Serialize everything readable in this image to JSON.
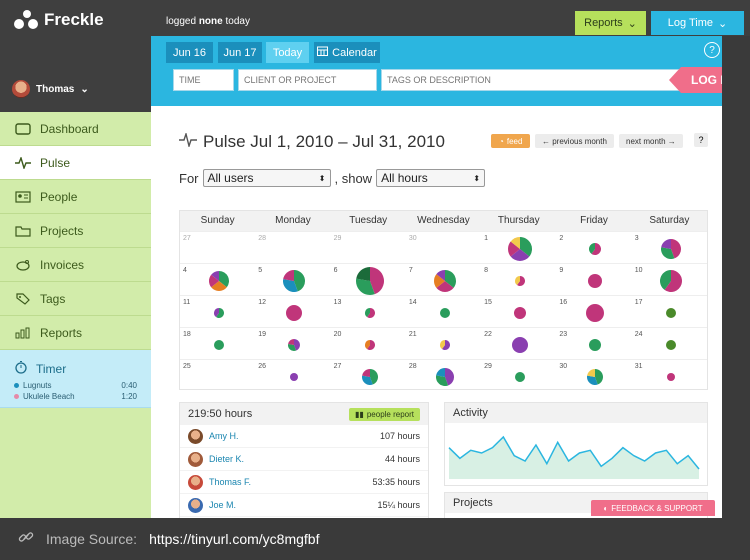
{
  "app": {
    "name": "Freckle"
  },
  "topbar": {
    "logged_prefix": "logged",
    "logged_bold": "none",
    "logged_suffix": "today",
    "reports_label": "Reports",
    "logtime_label": "Log Time"
  },
  "user": {
    "name": "Thomas"
  },
  "nav": [
    {
      "label": "Dashboard",
      "icon": "dashboard-icon"
    },
    {
      "label": "Pulse",
      "icon": "pulse-icon",
      "active": true
    },
    {
      "label": "People",
      "icon": "people-icon"
    },
    {
      "label": "Projects",
      "icon": "projects-icon"
    },
    {
      "label": "Invoices",
      "icon": "invoices-icon"
    },
    {
      "label": "Tags",
      "icon": "tags-icon"
    },
    {
      "label": "Reports",
      "icon": "reports-icon"
    }
  ],
  "timer": {
    "label": "Timer",
    "entries": [
      {
        "name": "Lugnuts",
        "time": "0:40",
        "color": "#1b8fbc"
      },
      {
        "name": "Ukulele Beach",
        "time": "1:20",
        "color": "#e58aa8"
      }
    ]
  },
  "datebar": {
    "tabs": [
      "Jun 16",
      "Jun 17",
      "Today"
    ],
    "calendar_label": "Calendar",
    "help": "?"
  },
  "entry": {
    "time_placeholder": "TIME",
    "client_placeholder": "CLIENT OR PROJECT",
    "tags_placeholder": "TAGS OR DESCRIPTION",
    "logit_label": "LOG IT"
  },
  "pulse": {
    "title": "Pulse Jul 1, 2010 – Jul 31, 2010",
    "feed_label": "feed",
    "prev_label": "previous month",
    "next_label": "next month",
    "help": "?"
  },
  "filter": {
    "for_label": "For",
    "users_value": "All users",
    "show_label": ", show",
    "hours_value": "All hours"
  },
  "calendar": {
    "weekdays": [
      "Sunday",
      "Monday",
      "Tuesday",
      "Wednesday",
      "Thursday",
      "Friday",
      "Saturday"
    ],
    "weeks": [
      [
        {
          "d": "27",
          "other": true
        },
        {
          "d": "28",
          "other": true
        },
        {
          "d": "29",
          "other": true
        },
        {
          "d": "30",
          "other": true
        },
        {
          "d": "1",
          "size": 12,
          "colors": [
            "#2a9d5c",
            "#8a3fb0",
            "#c0357a",
            "#f2c94c"
          ]
        },
        {
          "d": "2",
          "size": 6,
          "colors": [
            "#c0357a",
            "#2a9d5c"
          ]
        },
        {
          "d": "3",
          "size": 10,
          "colors": [
            "#c0357a",
            "#2a9d5c",
            "#8a3fb0"
          ]
        }
      ],
      [
        {
          "d": "4",
          "size": 10,
          "colors": [
            "#2a9d5c",
            "#e67e22",
            "#c0357a",
            "#8a3fb0"
          ]
        },
        {
          "d": "5",
          "size": 11,
          "colors": [
            "#2a9d5c",
            "#1b8fbc",
            "#c0357a"
          ]
        },
        {
          "d": "6",
          "size": 14,
          "colors": [
            "#c0357a",
            "#2a9d5c",
            "#1b6b3a"
          ]
        },
        {
          "d": "7",
          "size": 11,
          "colors": [
            "#2a9d5c",
            "#c0357a",
            "#e67e22",
            "#8a3fb0"
          ]
        },
        {
          "d": "8",
          "size": 5,
          "colors": [
            "#c0357a",
            "#f2c94c"
          ]
        },
        {
          "d": "9",
          "size": 7,
          "colors": [
            "#c0357a"
          ]
        },
        {
          "d": "10",
          "size": 11,
          "colors": [
            "#c0357a",
            "#2a9d5c"
          ]
        }
      ],
      [
        {
          "d": "11",
          "size": 5,
          "colors": [
            "#2a9d5c",
            "#8a3fb0"
          ]
        },
        {
          "d": "12",
          "size": 8,
          "colors": [
            "#c0357a"
          ]
        },
        {
          "d": "13",
          "size": 5,
          "colors": [
            "#c0357a",
            "#2a9d5c"
          ]
        },
        {
          "d": "14",
          "size": 5,
          "colors": [
            "#2a9d5c"
          ]
        },
        {
          "d": "15",
          "size": 6,
          "colors": [
            "#c0357a"
          ]
        },
        {
          "d": "16",
          "size": 9,
          "colors": [
            "#c0357a"
          ]
        },
        {
          "d": "17",
          "size": 5,
          "colors": [
            "#4a8a2a"
          ]
        }
      ],
      [
        {
          "d": "18",
          "size": 5,
          "colors": [
            "#2a9d5c"
          ]
        },
        {
          "d": "19",
          "size": 6,
          "colors": [
            "#8a3fb0",
            "#2a9d5c",
            "#c0357a"
          ]
        },
        {
          "d": "20",
          "size": 5,
          "colors": [
            "#c0357a",
            "#e67e22"
          ]
        },
        {
          "d": "21",
          "size": 5,
          "colors": [
            "#8a3fb0",
            "#f2c94c"
          ]
        },
        {
          "d": "22",
          "size": 8,
          "colors": [
            "#8a3fb0"
          ]
        },
        {
          "d": "23",
          "size": 6,
          "colors": [
            "#2a9d5c"
          ]
        },
        {
          "d": "24",
          "size": 5,
          "colors": [
            "#4a8a2a"
          ]
        }
      ],
      [
        {
          "d": "25",
          "size": 0,
          "colors": []
        },
        {
          "d": "26",
          "size": 4,
          "colors": [
            "#8a3fb0"
          ]
        },
        {
          "d": "27",
          "size": 8,
          "colors": [
            "#2a9d5c",
            "#1b8fbc",
            "#c0357a"
          ]
        },
        {
          "d": "28",
          "size": 9,
          "colors": [
            "#8a3fb0",
            "#2a9d5c",
            "#1b8fbc"
          ]
        },
        {
          "d": "29",
          "size": 5,
          "colors": [
            "#2a9d5c"
          ]
        },
        {
          "d": "30",
          "size": 8,
          "colors": [
            "#2a9d5c",
            "#1b8fbc",
            "#f2c94c"
          ]
        },
        {
          "d": "31",
          "size": 4,
          "colors": [
            "#c0357a"
          ]
        }
      ]
    ]
  },
  "hours": {
    "total": "219:50 hours",
    "people_report_label": "people report",
    "people": [
      {
        "name": "Amy H.",
        "hours": "107 hours",
        "color": "#7a4a2a"
      },
      {
        "name": "Dieter K.",
        "hours": "44 hours",
        "color": "#a05a3a"
      },
      {
        "name": "Thomas F.",
        "hours": "53:35 hours",
        "color": "#c74a3a"
      },
      {
        "name": "Joe M.",
        "hours": "15¼ hours",
        "color": "#3a6ab0"
      }
    ]
  },
  "activity": {
    "title": "Activity",
    "values": [
      22,
      14,
      20,
      18,
      22,
      30,
      16,
      12,
      24,
      10,
      26,
      12,
      18,
      20,
      8,
      14,
      22,
      16,
      12,
      18,
      20,
      10,
      16,
      6
    ]
  },
  "projects": {
    "title": "Projects"
  },
  "feedback": {
    "label": "FEEDBACK & SUPPORT"
  },
  "footer": {
    "source_label": "Image Source:",
    "source_url": "https://tinyurl.com/yc8mgfbf"
  },
  "colors": {
    "green": "#b6e05c",
    "blue": "#2bb6e0",
    "pink": "#f06e8a"
  }
}
